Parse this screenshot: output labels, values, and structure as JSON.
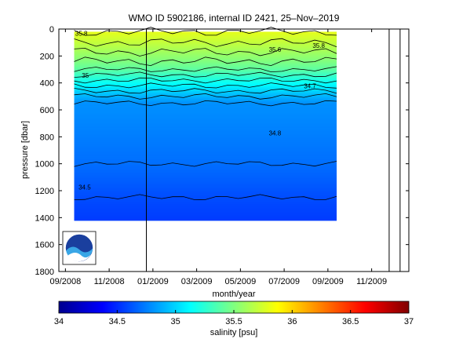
{
  "chart_data": {
    "type": "heatmap",
    "title": "WMO ID 5902186, internal ID 2421, 25–Nov–2019",
    "xlabel": "month/year",
    "ylabel": "pressure [dbar]",
    "x_ticks": [
      "09/2008",
      "11/2008",
      "01/2009",
      "03/2009",
      "05/2009",
      "07/2009",
      "09/2009",
      "11/2009"
    ],
    "x_tick_months": [
      0,
      2,
      4,
      6,
      8,
      10,
      12,
      14
    ],
    "xlim_months": [
      -0.3,
      15.7
    ],
    "y_ticks": [
      0,
      200,
      400,
      600,
      800,
      1000,
      1200,
      1400,
      1600,
      1800
    ],
    "ylim": [
      0,
      1800
    ],
    "y_reversed": true,
    "data_extent": {
      "x_months": [
        0.4,
        12.4
      ],
      "pressure": [
        20,
        1420
      ]
    },
    "contour_levels": [
      34.5,
      34.6,
      34.7,
      34.8,
      34.9,
      35.0,
      35.1,
      35.2,
      35.3,
      35.4,
      35.5,
      35.6,
      35.7,
      35.8
    ],
    "salinity_profile": [
      {
        "pressure": 20,
        "salinity": 35.8
      },
      {
        "pressure": 100,
        "salinity": 35.7
      },
      {
        "pressure": 170,
        "salinity": 35.6
      },
      {
        "pressure": 240,
        "salinity": 35.5
      },
      {
        "pressure": 300,
        "salinity": 35.4
      },
      {
        "pressure": 340,
        "salinity": 35.3
      },
      {
        "pressure": 380,
        "salinity": 35.2
      },
      {
        "pressure": 420,
        "salinity": 35.1
      },
      {
        "pressure": 460,
        "salinity": 35.0
      },
      {
        "pressure": 500,
        "salinity": 34.9
      },
      {
        "pressure": 550,
        "salinity": 34.8
      },
      {
        "pressure": 1000,
        "salinity": 34.7
      },
      {
        "pressure": 1250,
        "salinity": 34.6
      },
      {
        "pressure": 1420,
        "salinity": 34.55
      }
    ],
    "contour_labels": [
      {
        "text": "35.8",
        "x_month": 0.45,
        "pressure": 50
      },
      {
        "text": "35.6",
        "x_month": 9.3,
        "pressure": 170
      },
      {
        "text": "35.8",
        "x_month": 11.3,
        "pressure": 140
      },
      {
        "text": "35",
        "x_month": 0.75,
        "pressure": 360
      },
      {
        "text": "34.7",
        "x_month": 10.9,
        "pressure": 440
      },
      {
        "text": "34.8",
        "x_month": 9.3,
        "pressure": 790
      },
      {
        "text": "34.5",
        "x_month": 0.6,
        "pressure": 1190
      }
    ],
    "colorbar": {
      "label": "salinity [psu]",
      "ticks": [
        34,
        34.5,
        35,
        35.5,
        36,
        36.5,
        37
      ],
      "range": [
        34,
        37
      ]
    },
    "vertical_markers_months": [
      3.7,
      14.8,
      15.3
    ],
    "logo": "NOAA",
    "colors": {
      "cmap": [
        "#00008f",
        "#0000ff",
        "#00ffff",
        "#ffff00",
        "#ff0000",
        "#800000"
      ],
      "contour_line": "#000000"
    }
  }
}
